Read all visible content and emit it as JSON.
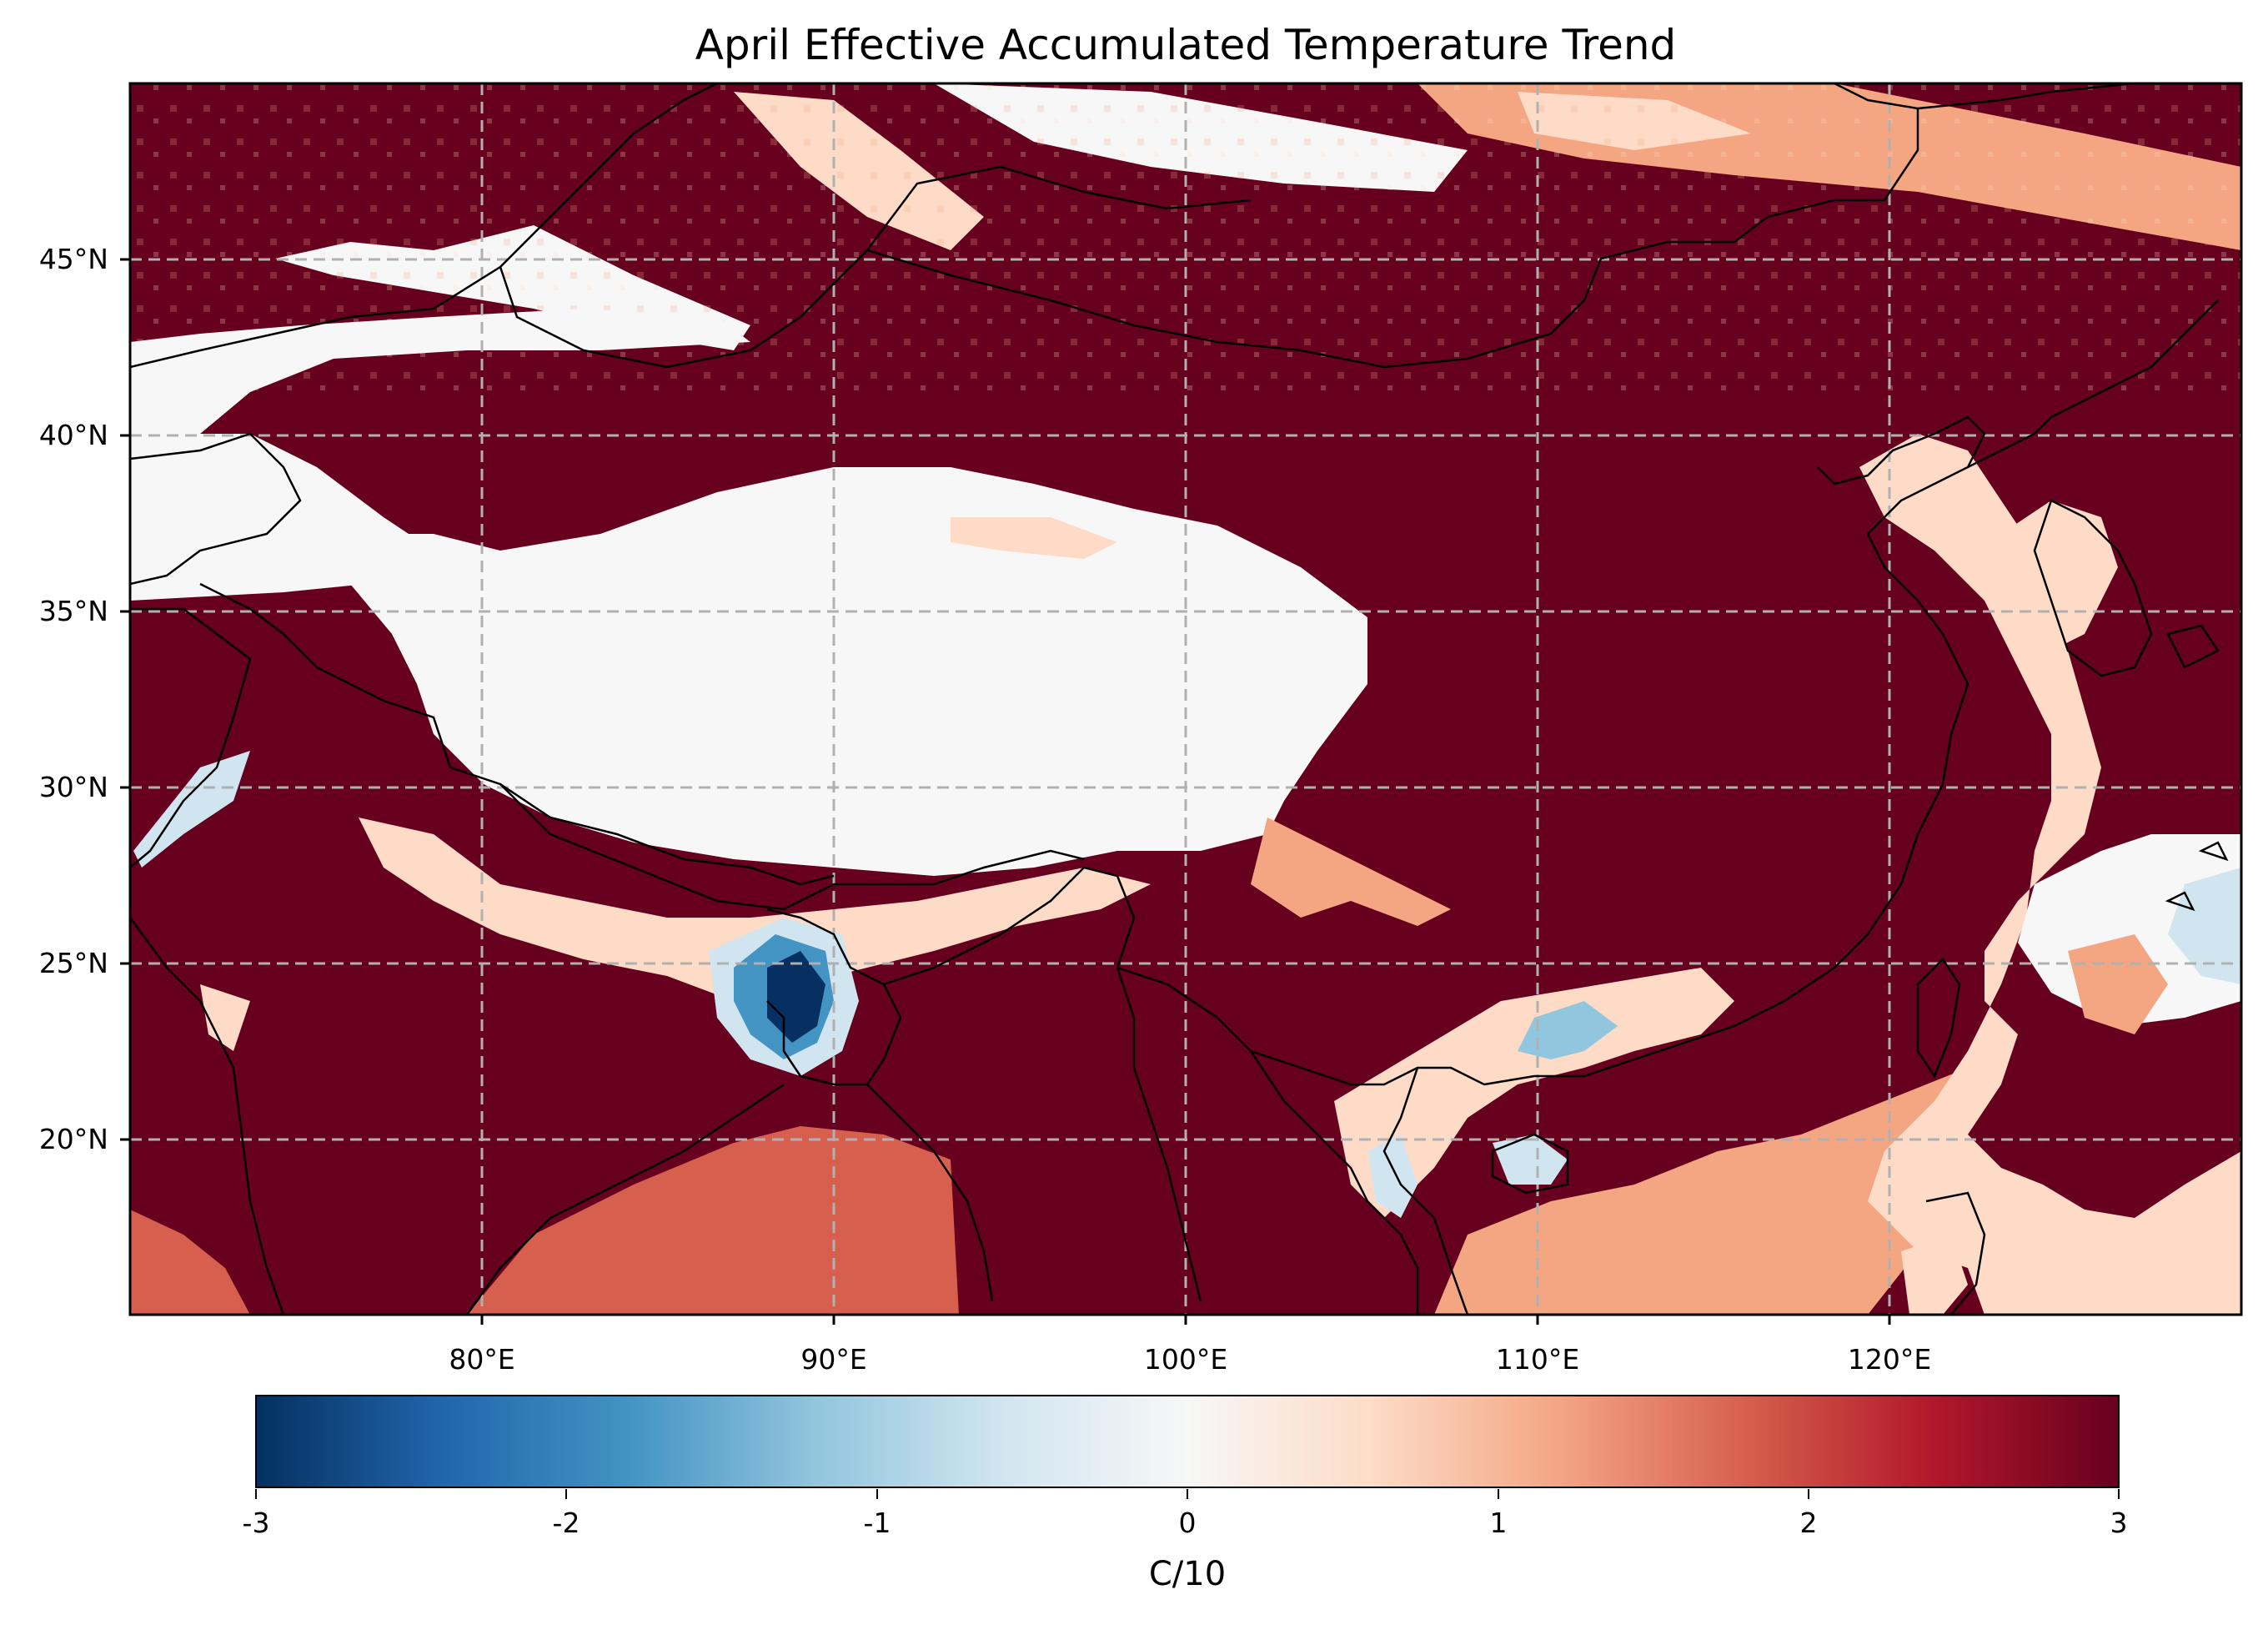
{
  "title": "April Effective Accumulated Temperature Trend",
  "map": {
    "projection": "PlateCarree",
    "lon_range": [
      70,
      130
    ],
    "lat_range": [
      15,
      50
    ],
    "gridlines": "dashed",
    "coastlines": true,
    "borders": true,
    "lat_ticks": [
      {
        "value": 45,
        "label": "45°N"
      },
      {
        "value": 40,
        "label": "40°N"
      },
      {
        "value": 35,
        "label": "35°N"
      },
      {
        "value": 30,
        "label": "30°N"
      },
      {
        "value": 25,
        "label": "25°N"
      },
      {
        "value": 20,
        "label": "20°N"
      }
    ],
    "lon_ticks": [
      {
        "value": 80,
        "label": "80°E"
      },
      {
        "value": 90,
        "label": "90°E"
      },
      {
        "value": 100,
        "label": "100°E"
      },
      {
        "value": 110,
        "label": "110°E"
      },
      {
        "value": 120,
        "label": "120°E"
      }
    ]
  },
  "colorbar": {
    "colormap": "RdBu_r",
    "range": [
      -3,
      3
    ],
    "colors": [
      "#053061",
      "#2166ac",
      "#4393c3",
      "#92c5de",
      "#d1e5f0",
      "#f7f7f7",
      "#fddbc7",
      "#f4a582",
      "#d6604d",
      "#b2182b",
      "#67001f"
    ],
    "ticks": [
      {
        "value": -3,
        "label": "-3"
      },
      {
        "value": -2,
        "label": "-2"
      },
      {
        "value": -1,
        "label": "-1"
      },
      {
        "value": 0,
        "label": "0"
      },
      {
        "value": 1,
        "label": "1"
      },
      {
        "value": 2,
        "label": "2"
      },
      {
        "value": 3,
        "label": "3"
      }
    ],
    "label": "C/10"
  },
  "colors": {
    "high": "#67001f",
    "neutral": "#f7f7f7",
    "low": "#053061"
  }
}
